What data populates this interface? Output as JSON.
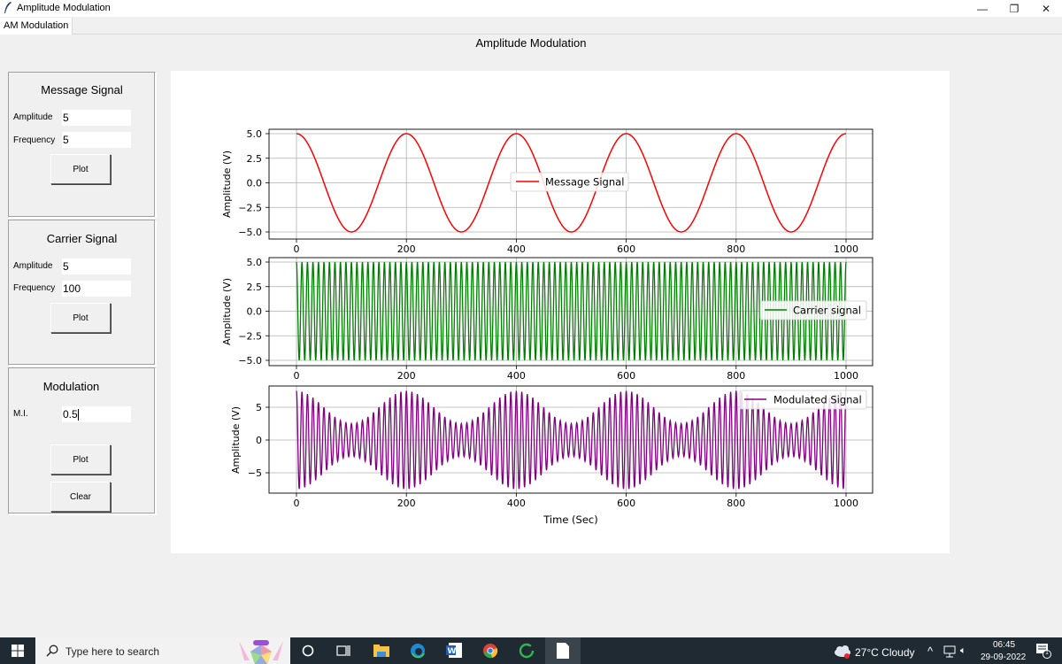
{
  "window": {
    "title": "Amplitude Modulation",
    "controls": {
      "minimize": "—",
      "restore": "❐",
      "close": "✕"
    }
  },
  "tabs": [
    {
      "label": "AM Modulation",
      "active": true
    }
  ],
  "heading": "Amplitude Modulation",
  "panels": {
    "message": {
      "title": "Message Signal",
      "amplitude_label": "Amplitude",
      "amplitude_value": "5",
      "frequency_label": "Frequency",
      "frequency_value": "5",
      "plot_label": "Plot"
    },
    "carrier": {
      "title": "Carrier Signal",
      "amplitude_label": "Amplitude",
      "amplitude_value": "5",
      "frequency_label": "Frequency",
      "frequency_value": "100",
      "plot_label": "Plot"
    },
    "modulation": {
      "title": "Modulation",
      "mi_label": "M.I.",
      "mi_value": "0.5",
      "plot_label": "Plot",
      "clear_label": "Clear"
    }
  },
  "chart_data": [
    {
      "type": "line",
      "title": "",
      "series": [
        {
          "name": "Message Signal",
          "color": "#ff0000",
          "function": "5*cos(2*pi*5*t/1000)",
          "x_range": [
            0,
            1000
          ]
        }
      ],
      "xlabel": "",
      "ylabel": "Amplitude (V)",
      "xticks": [
        "0",
        "200",
        "400",
        "600",
        "800",
        "1000"
      ],
      "yticks": [
        "5.0",
        "2.5",
        "0.0",
        "−2.5",
        "−5.0"
      ],
      "ylim": [
        -5,
        5
      ],
      "xlim": [
        0,
        1000
      ],
      "grid": true,
      "legend_position": "center"
    },
    {
      "type": "line",
      "title": "",
      "series": [
        {
          "name": "Carrier signal",
          "color": "#008000",
          "function": "5*cos(2*pi*100*t/1000)",
          "x_range": [
            0,
            1000
          ]
        }
      ],
      "xlabel": "",
      "ylabel": "Amplitude (V)",
      "xticks": [
        "0",
        "200",
        "400",
        "600",
        "800",
        "1000"
      ],
      "yticks": [
        "5.0",
        "2.5",
        "0.0",
        "−2.5",
        "−5.0"
      ],
      "ylim": [
        -5,
        5
      ],
      "xlim": [
        0,
        1000
      ],
      "grid": true,
      "legend_position": "center right"
    },
    {
      "type": "line",
      "title": "",
      "series": [
        {
          "name": "Modulated Signal",
          "color": "#800080",
          "function": "(5+2.5*cos(2*pi*5*t/1000))*cos(2*pi*100*t/1000)",
          "x_range": [
            0,
            1000
          ]
        }
      ],
      "xlabel": "Time (Sec)",
      "ylabel": "Amplitude (V)",
      "xticks": [
        "0",
        "200",
        "400",
        "600",
        "800",
        "1000"
      ],
      "yticks": [
        "5",
        "0",
        "−5"
      ],
      "ylim": [
        -7.5,
        7.5
      ],
      "xlim": [
        0,
        1000
      ],
      "grid": true,
      "legend_position": "upper right"
    }
  ],
  "taskbar": {
    "search_placeholder": "Type here to search",
    "weather": "27°C  Cloudy",
    "time": "06:45",
    "date": "29-09-2022",
    "notification_count": "1"
  }
}
